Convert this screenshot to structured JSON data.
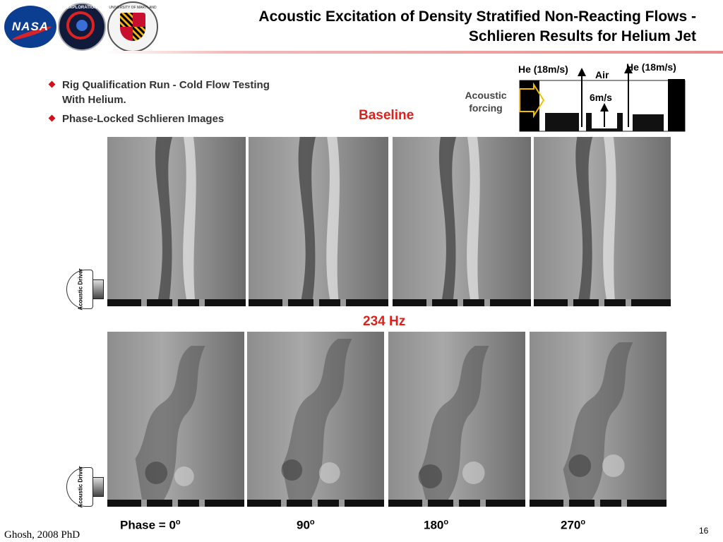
{
  "title": {
    "line1": "Acoustic Excitation of Density Stratified Non-Reacting Flows -",
    "line2": "Schlieren Results for Helium Jet"
  },
  "logos": {
    "nasa": "NASA",
    "exploration": "EXPLORATION",
    "umd": "UNIVERSITY OF MARYLAND"
  },
  "bullets": [
    "Rig Qualification Run - Cold Flow Testing With Helium.",
    "Phase-Locked Schlieren Images"
  ],
  "labels": {
    "baseline": "Baseline",
    "frequency": "234 Hz"
  },
  "schematic": {
    "he_left": "He (18m/s)",
    "he_right": "He (18m/s)",
    "air": "Air",
    "air_speed": "6m/s",
    "acoustic_forcing": "Acoustic forcing"
  },
  "driver_label": "Acoustic Driver",
  "phases": {
    "p0": "Phase = 0",
    "p90": "90",
    "p180": "180",
    "p270": "270",
    "degree": "o"
  },
  "footer": {
    "citation": "Ghosh, 2008 PhD",
    "page": "16"
  },
  "colors": {
    "accent_red": "#e0201a",
    "bullet_red": "#d0101a",
    "nasa_blue": "#0b3d91"
  }
}
